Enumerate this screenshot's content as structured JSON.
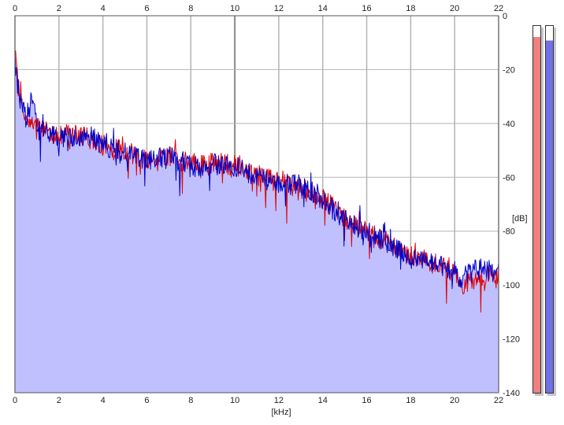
{
  "chart_data": {
    "type": "area",
    "title": "",
    "xlabel": "[kHz]",
    "ylabel": "[dB]",
    "xlim": [
      0,
      22
    ],
    "ylim": [
      -140,
      0
    ],
    "x_ticks": [
      "0",
      "2",
      "4",
      "6",
      "8",
      "10",
      "12",
      "14",
      "16",
      "18",
      "20",
      "22"
    ],
    "y_ticks": [
      "0",
      "-20",
      "-40",
      "-60",
      "-80",
      "-100",
      "-120",
      "-140"
    ],
    "grid": true,
    "fill_color": "#c0c0ff",
    "series": [
      {
        "color": "#e00000",
        "x": [
          0,
          0.1,
          0.3,
          0.5,
          0.8,
          1,
          1.5,
          2,
          2.5,
          3,
          3.5,
          4,
          5,
          6,
          6.5,
          7,
          8,
          9,
          10,
          11,
          12,
          13,
          14,
          15,
          16,
          17,
          18,
          19,
          20,
          20.3,
          21,
          22
        ],
        "values": [
          -14,
          -24,
          -33,
          -38,
          -40,
          -42,
          -42,
          -45,
          -44,
          -45,
          -46,
          -48,
          -50,
          -53,
          -54,
          -52,
          -55,
          -55,
          -55,
          -59,
          -62,
          -64,
          -68,
          -75,
          -80,
          -84,
          -89,
          -92,
          -95,
          -101,
          -97,
          -96
        ]
      },
      {
        "color": "#0000c8",
        "x": [
          0,
          0.1,
          0.3,
          0.5,
          0.8,
          1,
          1.5,
          2,
          2.5,
          3,
          3.5,
          4,
          5,
          6,
          6.5,
          7,
          8,
          9,
          10,
          11,
          12,
          13,
          14,
          15,
          16,
          17,
          18,
          19,
          20,
          20.3,
          21,
          22
        ],
        "values": [
          -16,
          -25,
          -34,
          -38,
          -30,
          -43,
          -43,
          -46,
          -44,
          -46,
          -45,
          -48,
          -51,
          -54,
          -53,
          -52,
          -56,
          -55,
          -56,
          -60,
          -62,
          -63,
          -68,
          -76,
          -80,
          -85,
          -90,
          -92,
          -95,
          -98,
          -94,
          -95
        ]
      }
    ]
  },
  "axis_labels": {
    "x": "[kHz]",
    "y": "[dB]"
  },
  "meters": {
    "left": {
      "color": "#f08080",
      "level": 0.97
    },
    "right": {
      "color": "#7070e8",
      "level": 0.96
    }
  }
}
